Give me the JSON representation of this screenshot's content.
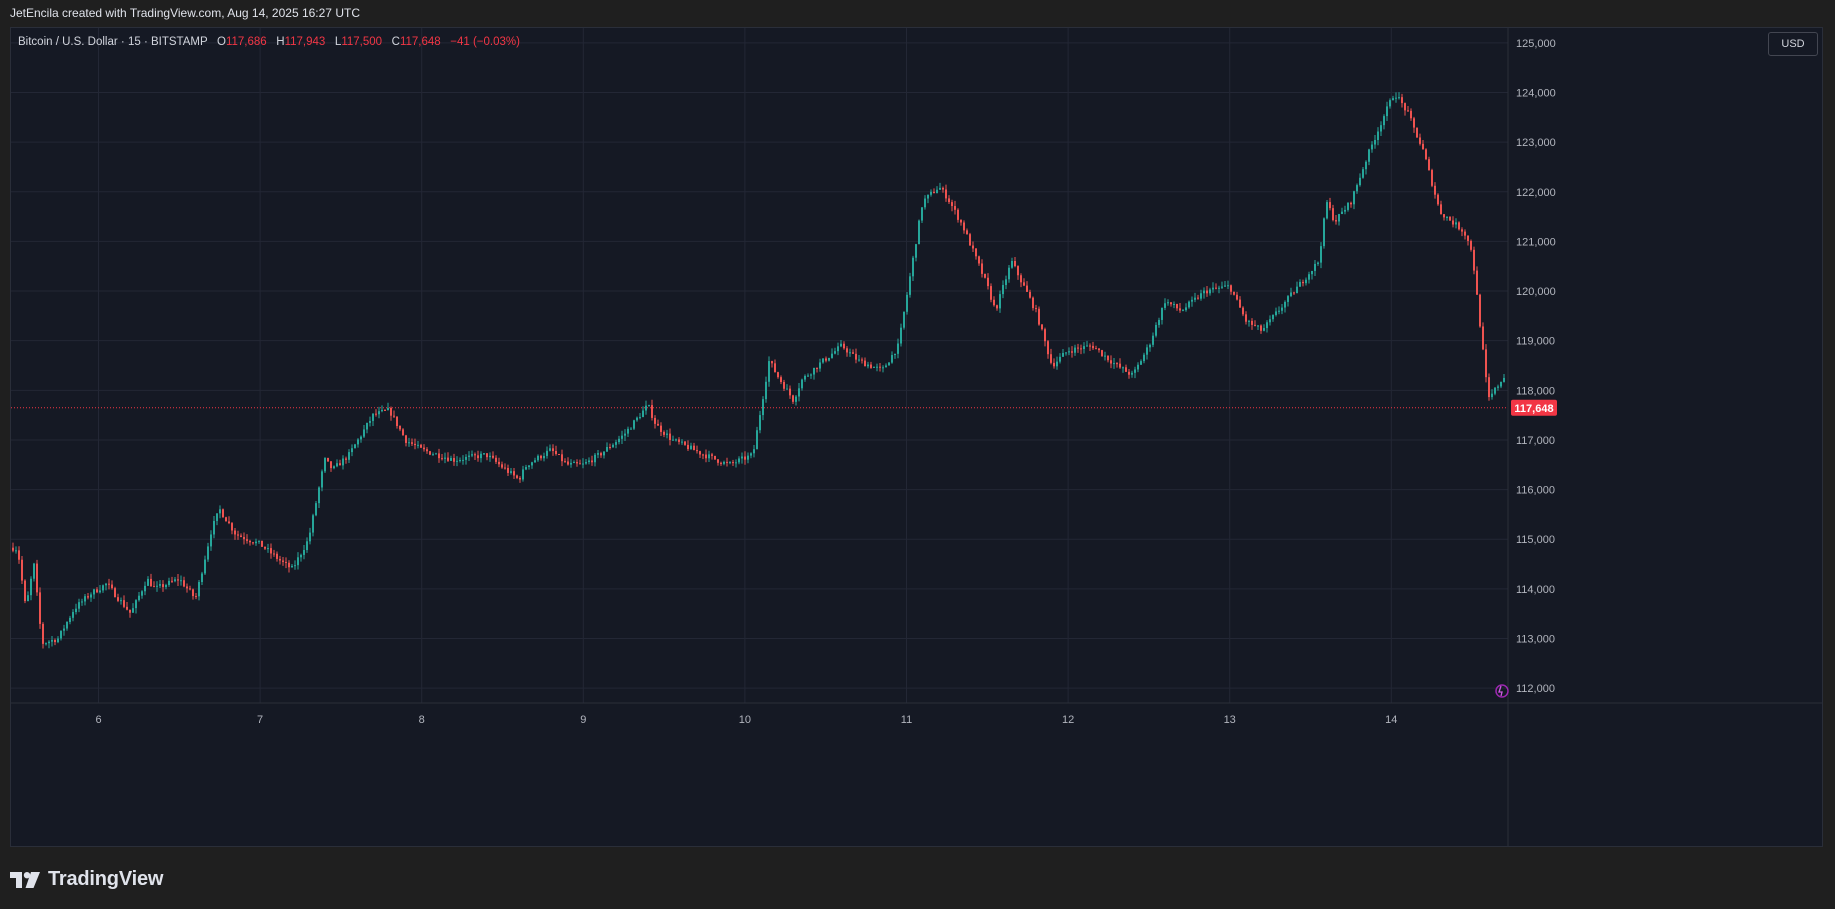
{
  "caption": "JetEncila created with TradingView.com, Aug 14, 2025 16:27 UTC",
  "symbol": {
    "name": "Bitcoin / U.S. Dollar",
    "interval": "15",
    "exchange": "BITSTAMP",
    "open": "117,686",
    "high": "117,943",
    "low": "117,500",
    "close": "117,648",
    "change": "−41 (−0.03%)"
  },
  "currency_label": "USD",
  "last_price_label": "117,648",
  "brand": "TradingView",
  "colors": {
    "up": "#26a69a",
    "down": "#ef5350",
    "background": "#151924",
    "grid": "#232735",
    "axis_text": "#b2b5be",
    "last_price": "#f23645"
  },
  "chart_data": {
    "type": "candlestick",
    "x_ticks": [
      "6",
      "7",
      "8",
      "9",
      "10",
      "11",
      "12",
      "13",
      "14"
    ],
    "y_ticks": [
      "112,000",
      "113,000",
      "114,000",
      "115,000",
      "116,000",
      "117,000",
      "118,000",
      "119,000",
      "120,000",
      "121,000",
      "122,000",
      "123,000",
      "124,000",
      "125,000"
    ],
    "ylim": [
      111700,
      125300
    ],
    "x": [
      5.4,
      5.5,
      5.55,
      5.6,
      5.65,
      5.75,
      5.85,
      5.95,
      6.05,
      6.2,
      6.3,
      6.35,
      6.5,
      6.6,
      6.7,
      6.75,
      6.85,
      7.0,
      7.15,
      7.2,
      7.3,
      7.4,
      7.45,
      7.55,
      7.7,
      7.8,
      7.9,
      8.0,
      8.2,
      8.4,
      8.6,
      8.65,
      8.8,
      8.9,
      9.0,
      9.1,
      9.25,
      9.4,
      9.45,
      9.55,
      9.75,
      9.9,
      10.05,
      10.15,
      10.2,
      10.3,
      10.35,
      10.45,
      10.6,
      10.7,
      10.85,
      10.95,
      11.1,
      11.2,
      11.25,
      11.35,
      11.5,
      11.55,
      11.65,
      11.8,
      11.9,
      12.0,
      12.15,
      12.3,
      12.4,
      12.5,
      12.6,
      12.7,
      12.85,
      13.0,
      13.1,
      13.2,
      13.4,
      13.55,
      13.6,
      13.65,
      13.75,
      13.85,
      13.95,
      14.02,
      14.1,
      14.2,
      14.3,
      14.45,
      14.5,
      14.6,
      14.7,
      14.75
    ],
    "y": [
      114900,
      114800,
      113600,
      114500,
      112900,
      113000,
      113600,
      113900,
      114100,
      113500,
      114200,
      114000,
      114200,
      113800,
      115200,
      115600,
      115100,
      114900,
      114500,
      114400,
      115000,
      116600,
      116400,
      116700,
      117500,
      117600,
      117000,
      116800,
      116600,
      116700,
      116200,
      116500,
      116800,
      116500,
      116500,
      116700,
      117100,
      117700,
      117300,
      117000,
      116700,
      116500,
      116700,
      118600,
      118300,
      117800,
      118200,
      118500,
      118900,
      118600,
      118400,
      118900,
      121800,
      122100,
      121900,
      121300,
      120100,
      119600,
      120600,
      119600,
      118500,
      118800,
      118900,
      118500,
      118300,
      118900,
      119800,
      119600,
      120000,
      120100,
      119400,
      119200,
      120000,
      120600,
      121800,
      121400,
      121800,
      122700,
      123500,
      124000,
      123600,
      122800,
      121600,
      121200,
      120800,
      117800,
      118300,
      117648
    ],
    "last": 117648
  }
}
